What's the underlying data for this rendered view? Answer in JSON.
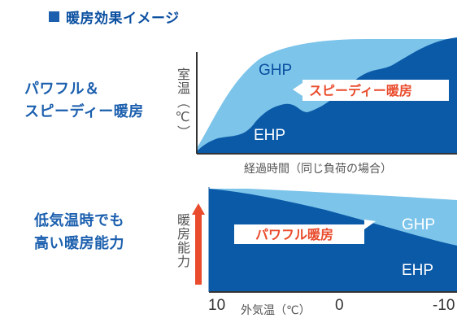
{
  "header": {
    "title": "暖房効果イメージ",
    "accent_color": "#1b5fae"
  },
  "panel1": {
    "side_title_line1": "パワフル＆",
    "side_title_line2": "スピーディー暖房",
    "y_axis_label": "室温（℃）",
    "x_axis_label": "経過時間（同じ負荷の場合）",
    "series_top": "GHP",
    "series_bottom": "EHP",
    "callout": "スピーディー暖房"
  },
  "panel2": {
    "side_title_line1": "低気温時でも",
    "side_title_line2": "高い暖房能力",
    "y_axis_label": "暖房能力",
    "x_axis_label": "外気温（℃）",
    "x_ticks": [
      "10",
      "0",
      "-10"
    ],
    "series_top": "GHP",
    "series_bottom": "EHP",
    "callout": "パワフル暖房"
  },
  "colors": {
    "ghp_fill": "#7cc4ea",
    "ehp_fill": "#0a5aa8",
    "callout_text": "#e94b2c",
    "arrow": "#e94b2c"
  }
}
